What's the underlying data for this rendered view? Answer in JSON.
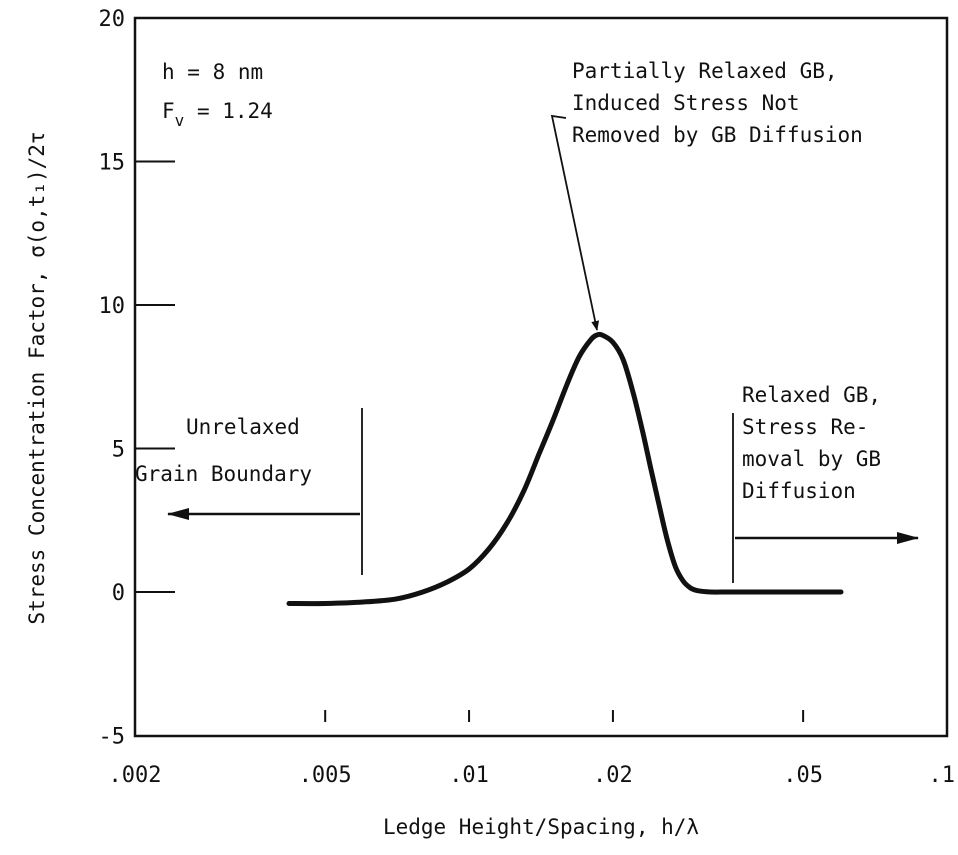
{
  "chart_data": {
    "type": "line",
    "title": "",
    "xlabel": "Ledge Height/Spacing, h/λ",
    "ylabel": "Stress Concentration Factor, σ(o,t₁)/2τ",
    "xscale": "log",
    "xlim": [
      0.002,
      0.1
    ],
    "ylim": [
      -5,
      20
    ],
    "grid": false,
    "x_ticks": [
      {
        "value": 0.002,
        "label": ".002"
      },
      {
        "value": 0.005,
        "label": ".005"
      },
      {
        "value": 0.01,
        "label": ".01"
      },
      {
        "value": 0.02,
        "label": ".02"
      },
      {
        "value": 0.05,
        "label": ".05"
      },
      {
        "value": 0.1,
        "label": ".1"
      }
    ],
    "y_ticks": [
      {
        "value": 20,
        "label": "20"
      },
      {
        "value": 15,
        "label": "15"
      },
      {
        "value": 10,
        "label": "10"
      },
      {
        "value": 5,
        "label": "5"
      },
      {
        "value": 0,
        "label": "0"
      },
      {
        "value": -5,
        "label": "-5"
      }
    ],
    "series": [
      {
        "x": [
          0.0042,
          0.005,
          0.006,
          0.007,
          0.008,
          0.009,
          0.01,
          0.011,
          0.012,
          0.013,
          0.014,
          0.015,
          0.016,
          0.017,
          0.018,
          0.0185,
          0.019,
          0.02,
          0.021,
          0.022,
          0.023,
          0.024,
          0.025,
          0.026,
          0.027,
          0.028,
          0.029,
          0.03,
          0.032,
          0.035,
          0.04,
          0.05,
          0.06
        ],
        "y": [
          -0.4,
          -0.4,
          -0.35,
          -0.25,
          0.0,
          0.35,
          0.8,
          1.5,
          2.4,
          3.5,
          4.8,
          6.0,
          7.2,
          8.2,
          8.8,
          8.95,
          8.95,
          8.7,
          8.1,
          7.0,
          5.7,
          4.3,
          3.0,
          1.8,
          0.9,
          0.4,
          0.15,
          0.05,
          0.0,
          0.0,
          0.0,
          0.0,
          0.0
        ]
      }
    ],
    "parameters": {
      "h_line": "h  = 8 nm",
      "fv_label": "F",
      "fv_sub": "v",
      "fv_value": " = 1.24"
    },
    "annotations": {
      "peak": [
        "Partially Relaxed GB,",
        "Induced Stress Not",
        "Removed by GB Diffusion"
      ],
      "unrelaxed": [
        "Unrelaxed",
        "Grain Boundary"
      ],
      "relaxed": [
        "Relaxed GB,",
        "Stress Re-",
        "moval by GB",
        "Diffusion"
      ]
    }
  }
}
